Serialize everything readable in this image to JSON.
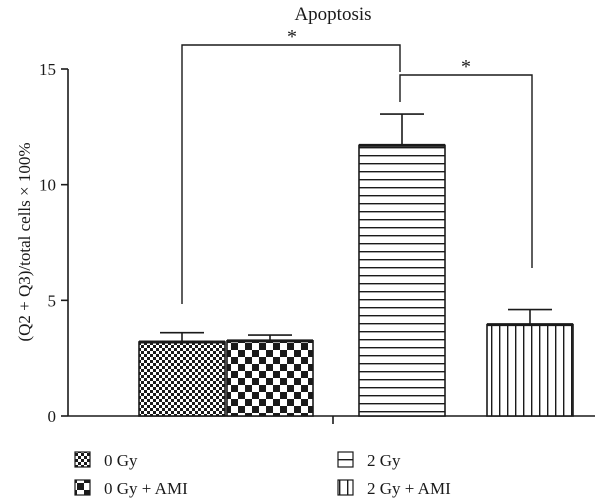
{
  "chart_data": {
    "type": "bar",
    "title": "Apoptosis",
    "ylabel": "(Q2 + Q3)/total cells × 100%",
    "xlabel": "",
    "ylim": [
      0,
      15
    ],
    "yticks": [
      0,
      5,
      10,
      15
    ],
    "categories": [
      "0 Gy",
      "0 Gy + AMI",
      "2 Gy",
      "2 Gy + AMI"
    ],
    "values": [
      3.2,
      3.25,
      11.7,
      3.95
    ],
    "errors": [
      0.4,
      0.25,
      1.35,
      0.65
    ],
    "patterns": [
      "small-checker",
      "checker",
      "horizontal-lines",
      "vertical-lines"
    ],
    "significance": [
      {
        "from": "0 Gy",
        "to": "2 Gy",
        "label": "*"
      },
      {
        "from": "2 Gy",
        "to": "2 Gy + AMI",
        "label": "*"
      }
    ],
    "legend": {
      "placement": "bottom",
      "entries": [
        "0 Gy",
        "0 Gy + AMI",
        "2 Gy",
        "2 Gy + AMI"
      ]
    },
    "grid": false,
    "colors": {
      "ink": "#1a1a1a",
      "background": "#ffffff"
    }
  }
}
